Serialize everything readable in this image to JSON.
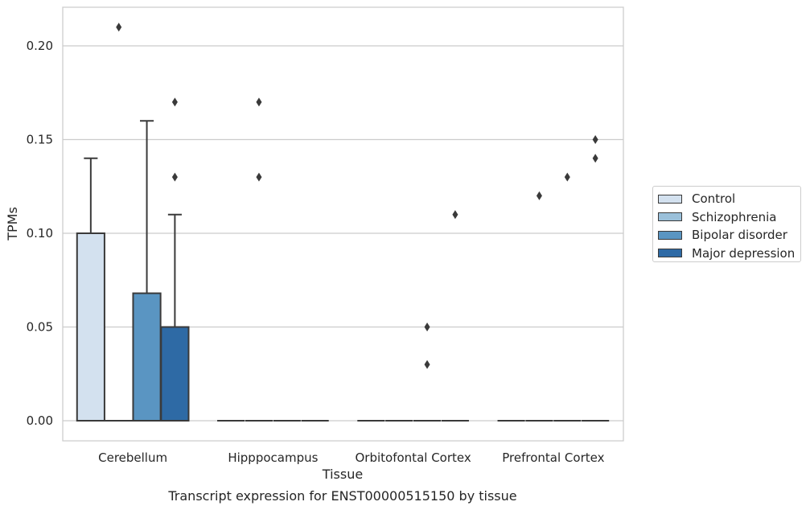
{
  "chart_data": {
    "type": "box",
    "categories": [
      "Cerebellum",
      "Hipppocampus",
      "Orbitofontal Cortex",
      "Prefrontal Cortex"
    ],
    "xlabel": "Tissue",
    "ylabel": "TPMs",
    "caption": "Transcript expression for ENST00000515150 by tissue",
    "ylim": [
      -0.01,
      0.22
    ],
    "yticks": [
      "0.00",
      "0.05",
      "0.10",
      "0.15",
      "0.20"
    ],
    "grid": "horizontal",
    "legend_position": "right",
    "series": [
      {
        "name": "Control",
        "color": "#d3e1ef",
        "boxes": [
          {
            "q1": 0.0,
            "median": 0.0,
            "q3": 0.1,
            "whisker_low": 0.0,
            "whisker_high": 0.14,
            "outliers": []
          },
          {
            "q1": 0.0,
            "median": 0.0,
            "q3": 0.0,
            "whisker_low": 0.0,
            "whisker_high": 0.0,
            "outliers": []
          },
          {
            "q1": 0.0,
            "median": 0.0,
            "q3": 0.0,
            "whisker_low": 0.0,
            "whisker_high": 0.0,
            "outliers": []
          },
          {
            "q1": 0.0,
            "median": 0.0,
            "q3": 0.0,
            "whisker_low": 0.0,
            "whisker_high": 0.0,
            "outliers": []
          }
        ]
      },
      {
        "name": "Schizophrenia",
        "color": "#9ac0da",
        "boxes": [
          {
            "q1": 0.0,
            "median": 0.0,
            "q3": 0.0,
            "whisker_low": 0.0,
            "whisker_high": 0.0,
            "outliers": [
              0.21
            ]
          },
          {
            "q1": 0.0,
            "median": 0.0,
            "q3": 0.0,
            "whisker_low": 0.0,
            "whisker_high": 0.0,
            "outliers": [
              0.17,
              0.13
            ]
          },
          {
            "q1": 0.0,
            "median": 0.0,
            "q3": 0.0,
            "whisker_low": 0.0,
            "whisker_high": 0.0,
            "outliers": []
          },
          {
            "q1": 0.0,
            "median": 0.0,
            "q3": 0.0,
            "whisker_low": 0.0,
            "whisker_high": 0.0,
            "outliers": [
              0.12
            ]
          }
        ]
      },
      {
        "name": "Bipolar disorder",
        "color": "#5a95c2",
        "boxes": [
          {
            "q1": 0.0,
            "median": 0.0,
            "q3": 0.068,
            "whisker_low": 0.0,
            "whisker_high": 0.16,
            "outliers": []
          },
          {
            "q1": 0.0,
            "median": 0.0,
            "q3": 0.0,
            "whisker_low": 0.0,
            "whisker_high": 0.0,
            "outliers": []
          },
          {
            "q1": 0.0,
            "median": 0.0,
            "q3": 0.0,
            "whisker_low": 0.0,
            "whisker_high": 0.0,
            "outliers": [
              0.05,
              0.03
            ]
          },
          {
            "q1": 0.0,
            "median": 0.0,
            "q3": 0.0,
            "whisker_low": 0.0,
            "whisker_high": 0.0,
            "outliers": [
              0.13
            ]
          }
        ]
      },
      {
        "name": "Major depression",
        "color": "#2e6aa5",
        "boxes": [
          {
            "q1": 0.0,
            "median": 0.0,
            "q3": 0.05,
            "whisker_low": 0.0,
            "whisker_high": 0.11,
            "outliers": [
              0.17,
              0.13
            ]
          },
          {
            "q1": 0.0,
            "median": 0.0,
            "q3": 0.0,
            "whisker_low": 0.0,
            "whisker_high": 0.0,
            "outliers": []
          },
          {
            "q1": 0.0,
            "median": 0.0,
            "q3": 0.0,
            "whisker_low": 0.0,
            "whisker_high": 0.0,
            "outliers": [
              0.11
            ]
          },
          {
            "q1": 0.0,
            "median": 0.0,
            "q3": 0.0,
            "whisker_low": 0.0,
            "whisker_high": 0.0,
            "outliers": [
              0.15,
              0.14
            ]
          }
        ]
      }
    ]
  }
}
